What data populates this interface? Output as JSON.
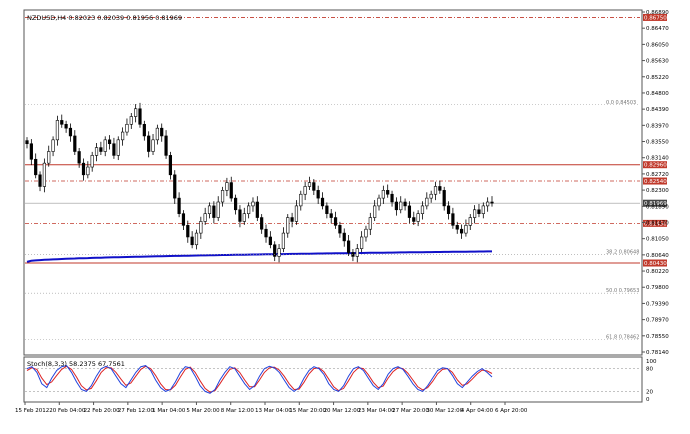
{
  "window": {
    "symbol_info": "NZDUSD,H4  0.82023 0.82039 0.81956 0.81969",
    "stoch_info": "Stoch(8,3,3) 58.2375 67.7561"
  },
  "colors": {
    "candle": "#000000",
    "ma": "#1010c8",
    "level_red": "#c0392b",
    "level_dash": "#c0392b",
    "stoch_main": "#2244dd",
    "stoch_signal": "#dd2222",
    "current_price_bg": "#c0392b",
    "bid_price_bg": "#444444"
  },
  "price_axis": {
    "labels": [
      "0.86890",
      "0.86470",
      "0.86050",
      "0.85630",
      "0.85220",
      "0.84800",
      "0.84390",
      "0.83970",
      "0.83550",
      "0.83140",
      "0.82720",
      "0.82300",
      "0.81890",
      "0.81470",
      "0.81050",
      "0.80640",
      "0.80220",
      "0.79800",
      "0.79390",
      "0.78970",
      "0.78550",
      "0.78140"
    ],
    "highlighted": [
      {
        "label": "0.86750",
        "style": "red"
      },
      {
        "label": "0.82960",
        "style": "red"
      },
      {
        "label": "0.82540",
        "style": "red"
      },
      {
        "label": "0.81969",
        "style": "dark"
      },
      {
        "label": "0.81450",
        "style": "red"
      },
      {
        "label": "0.80430",
        "style": "red"
      }
    ]
  },
  "fib_labels": [
    {
      "level": "0.0",
      "price": "0.84503"
    },
    {
      "level": "38.2",
      "price": "0.80648"
    },
    {
      "level": "50.0",
      "price": "0.79653"
    },
    {
      "level": "61.8",
      "price": "0.78462"
    }
  ],
  "stoch_axis": {
    "labels": [
      "100",
      "80",
      "20",
      "0"
    ]
  },
  "time_axis": {
    "labels": [
      "15 Feb 2012",
      "20 Feb 04:00",
      "22 Feb 20:00",
      "27 Feb 12:00",
      "1 Mar 04:00",
      "5 Mar 20:00",
      "8 Mar 12:00",
      "13 Mar 04:00",
      "15 Mar 20:00",
      "20 Mar 12:00",
      "23 Mar 04:00",
      "27 Mar 20:00",
      "30 Mar 12:00",
      "4 Apr 04:00",
      "6 Apr 20:00"
    ]
  },
  "chart_data": {
    "type": "candlestick",
    "symbol": "NZDUSD",
    "timeframe": "H4",
    "ylim": [
      0.7814,
      0.8689
    ],
    "closes": [
      0.835,
      0.831,
      0.827,
      0.824,
      0.83,
      0.833,
      0.836,
      0.841,
      0.84,
      0.839,
      0.837,
      0.833,
      0.83,
      0.827,
      0.829,
      0.832,
      0.834,
      0.833,
      0.836,
      0.835,
      0.832,
      0.836,
      0.838,
      0.84,
      0.842,
      0.844,
      0.84,
      0.837,
      0.833,
      0.836,
      0.839,
      0.837,
      0.832,
      0.827,
      0.821,
      0.817,
      0.814,
      0.811,
      0.809,
      0.812,
      0.815,
      0.817,
      0.819,
      0.816,
      0.82,
      0.823,
      0.825,
      0.821,
      0.818,
      0.815,
      0.817,
      0.819,
      0.82,
      0.816,
      0.813,
      0.811,
      0.809,
      0.806,
      0.808,
      0.812,
      0.816,
      0.815,
      0.819,
      0.822,
      0.824,
      0.825,
      0.823,
      0.821,
      0.819,
      0.817,
      0.816,
      0.814,
      0.812,
      0.81,
      0.807,
      0.806,
      0.808,
      0.811,
      0.813,
      0.816,
      0.819,
      0.821,
      0.823,
      0.822,
      0.82,
      0.818,
      0.82,
      0.819,
      0.816,
      0.815,
      0.817,
      0.819,
      0.821,
      0.822,
      0.824,
      0.823,
      0.819,
      0.817,
      0.814,
      0.813,
      0.812,
      0.814,
      0.816,
      0.818,
      0.817,
      0.819,
      0.82,
      0.8197
    ],
    "ma_start": 0.8046,
    "ma_end": 0.8073,
    "stoch_main": [
      80,
      85,
      70,
      40,
      30,
      55,
      75,
      85,
      88,
      70,
      45,
      25,
      20,
      35,
      60,
      80,
      86,
      80,
      60,
      40,
      30,
      50,
      70,
      85,
      88,
      75,
      50,
      30,
      20,
      25,
      45,
      70,
      85,
      82,
      60,
      35,
      20,
      15,
      25,
      50,
      70,
      85,
      80,
      60,
      40,
      25,
      35,
      60,
      80,
      86,
      82,
      70,
      50,
      30,
      20,
      30,
      55,
      75,
      85,
      80,
      65,
      40,
      25,
      20,
      35,
      60,
      80,
      85,
      75,
      55,
      35,
      25,
      40,
      65,
      80,
      85,
      78,
      60,
      40,
      25,
      20,
      35,
      55,
      75,
      82,
      80,
      62,
      40,
      30,
      45,
      60,
      72,
      80,
      70,
      58
    ],
    "stoch_signal": [
      75,
      82,
      78,
      55,
      38,
      45,
      62,
      78,
      86,
      78,
      58,
      35,
      24,
      28,
      48,
      70,
      82,
      82,
      70,
      52,
      36,
      42,
      60,
      78,
      86,
      80,
      62,
      40,
      25,
      24,
      36,
      58,
      78,
      84,
      70,
      48,
      28,
      18,
      22,
      40,
      60,
      78,
      82,
      70,
      50,
      32,
      32,
      50,
      70,
      82,
      84,
      76,
      60,
      40,
      25,
      26,
      44,
      66,
      80,
      82,
      72,
      52,
      32,
      22,
      28,
      48,
      70,
      82,
      80,
      64,
      44,
      30,
      34,
      55,
      72,
      82,
      80,
      68,
      50,
      32,
      24,
      30,
      46,
      66,
      78,
      80,
      70,
      50,
      36,
      40,
      52,
      66,
      76,
      74,
      67
    ]
  }
}
